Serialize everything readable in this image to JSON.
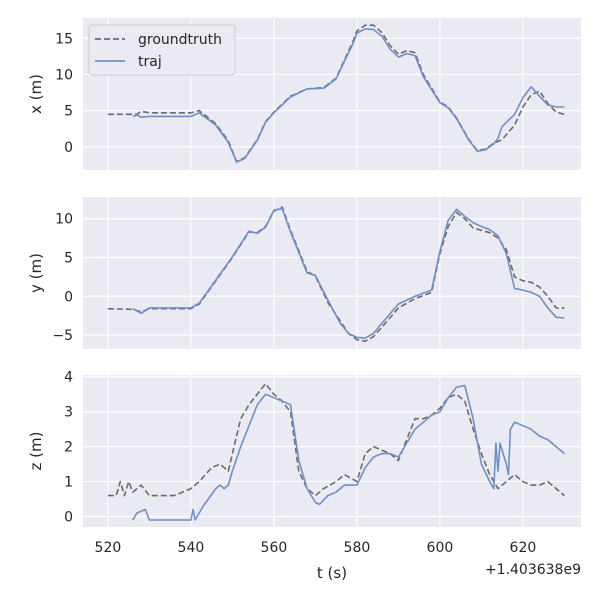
{
  "chart_data": {
    "type": "line",
    "xlabel": "t (s)",
    "x_offset_label": "+1.403638e9",
    "xlim": [
      514,
      634
    ],
    "x_ticks": [
      520,
      540,
      560,
      580,
      600,
      620
    ],
    "grid": true,
    "legend_location": "upper-left (top panel)",
    "style": {
      "background": "#eaeaf2",
      "grid_color": "#ffffff"
    },
    "series_styles": [
      {
        "name": "groundtruth",
        "color": "#6b6b6b",
        "dash": "dashed"
      },
      {
        "name": "traj",
        "color": "#6f8fc9",
        "dash": "solid"
      }
    ],
    "panels": [
      {
        "id": "x",
        "ylabel": "x (m)",
        "ylim": [
          -3.2,
          17.8
        ],
        "y_ticks": [
          0,
          5,
          10,
          15
        ],
        "series": [
          {
            "name": "groundtruth",
            "x": [
              520,
              527,
              528,
              530,
              533,
              540,
              542,
              546,
              549,
              551,
              553,
              556,
              558,
              560,
              564,
              568,
              572,
              575,
              577,
              579,
              580,
              582,
              584,
              586,
              588,
              590,
              592,
              594,
              596,
              600,
              602,
              604,
              607,
              609,
              611,
              613,
              615,
              618,
              620,
              622,
              624,
              626,
              628,
              630
            ],
            "y": [
              4.5,
              4.5,
              4.9,
              4.7,
              4.7,
              4.7,
              5.0,
              3.2,
              0.8,
              -2.0,
              -1.5,
              1.0,
              3.5,
              4.8,
              7.0,
              8.0,
              8.2,
              9.5,
              12.0,
              14.5,
              16.0,
              16.8,
              16.8,
              15.8,
              14.0,
              12.8,
              13.3,
              13.0,
              10.0,
              6.2,
              5.5,
              4.0,
              1.0,
              -0.5,
              -0.3,
              0.5,
              1.0,
              3.0,
              5.5,
              7.2,
              7.7,
              6.0,
              4.8,
              4.5
            ]
          },
          {
            "name": "traj",
            "x": [
              526,
              527,
              528,
              530,
              533,
              540,
              542,
              546,
              549,
              551,
              553,
              556,
              558,
              560,
              564,
              568,
              572,
              575,
              577,
              579,
              580,
              582,
              584,
              586,
              588,
              590,
              592,
              594,
              596,
              600,
              602,
              604,
              607,
              609,
              611,
              613,
              614,
              615,
              618,
              620,
              622,
              624,
              626,
              628,
              630
            ],
            "y": [
              4.2,
              4.4,
              4.1,
              4.2,
              4.2,
              4.2,
              4.7,
              3.0,
              0.6,
              -2.1,
              -1.6,
              0.9,
              3.4,
              4.7,
              6.9,
              8.0,
              8.1,
              9.4,
              11.8,
              14.2,
              15.7,
              16.3,
              16.2,
              15.3,
              13.5,
              12.4,
              12.9,
              12.6,
              9.7,
              6.1,
              5.4,
              3.9,
              0.9,
              -0.6,
              -0.4,
              0.4,
              1.2,
              2.8,
              4.5,
              6.8,
              8.3,
              7.0,
              5.8,
              5.5,
              5.5
            ]
          }
        ]
      },
      {
        "id": "y",
        "ylabel": "y (m)",
        "ylim": [
          -6.8,
          12.8
        ],
        "y_ticks": [
          -5,
          0,
          5,
          10
        ],
        "series": [
          {
            "name": "groundtruth",
            "x": [
              520,
              526,
              528,
              530,
              540,
              542,
              546,
              550,
              554,
              556,
              558,
              560,
              562,
              564,
              568,
              570,
              573,
              576,
              578,
              580,
              582,
              584,
              586,
              590,
              594,
              598,
              600,
              602,
              604,
              606,
              608,
              610,
              612,
              614,
              616,
              618,
              620,
              622,
              624,
              626,
              628,
              630
            ],
            "y": [
              -1.6,
              -1.7,
              -2.0,
              -1.6,
              -1.6,
              -1.0,
              2.0,
              5.0,
              8.3,
              8.2,
              9.0,
              11.0,
              11.5,
              8.5,
              3.2,
              2.6,
              -0.8,
              -3.2,
              -4.8,
              -5.6,
              -5.8,
              -5.2,
              -4.0,
              -1.5,
              -0.3,
              0.5,
              5.5,
              9.0,
              10.8,
              10.0,
              8.8,
              8.5,
              8.2,
              7.5,
              6.0,
              2.5,
              2.0,
              1.8,
              1.2,
              0.0,
              -1.5,
              -1.5
            ]
          },
          {
            "name": "traj",
            "x": [
              526,
              528,
              530,
              540,
              542,
              546,
              550,
              554,
              556,
              558,
              560,
              562,
              564,
              568,
              570,
              573,
              576,
              578,
              580,
              582,
              584,
              586,
              590,
              594,
              598,
              600,
              602,
              604,
              606,
              608,
              610,
              612,
              614,
              616,
              618,
              620,
              622,
              624,
              626,
              628,
              630
            ],
            "y": [
              -1.6,
              -2.2,
              -1.5,
              -1.5,
              -0.9,
              2.1,
              5.1,
              8.4,
              8.1,
              8.9,
              11.1,
              11.3,
              8.3,
              3.0,
              2.7,
              -0.5,
              -3.5,
              -4.8,
              -5.3,
              -5.4,
              -4.8,
              -3.5,
              -1.0,
              0.0,
              0.8,
              5.8,
              9.8,
              11.2,
              10.3,
              9.5,
              9.0,
              8.6,
              7.8,
              5.5,
              1.0,
              0.8,
              0.5,
              0.0,
              -1.5,
              -2.7,
              -2.8
            ]
          }
        ]
      },
      {
        "id": "z",
        "ylabel": "z (m)",
        "ylim": [
          -0.3,
          4.05
        ],
        "y_ticks": [
          0,
          1,
          2,
          3,
          4
        ],
        "series": [
          {
            "name": "groundtruth",
            "x": [
              520,
              522,
              523,
              524,
              525,
              526,
              527,
              528,
              530,
              533,
              536,
              540,
              542,
              545,
              547,
              549,
              550,
              552,
              554,
              556,
              558,
              560,
              562,
              564,
              566,
              568,
              570,
              572,
              575,
              577,
              580,
              582,
              584,
              586,
              588,
              590,
              592,
              594,
              596,
              598,
              600,
              602,
              604,
              606,
              608,
              610,
              612,
              614,
              616,
              618,
              620,
              622,
              624,
              626,
              628,
              630
            ],
            "y": [
              0.6,
              0.6,
              1.0,
              0.6,
              1.0,
              0.7,
              0.8,
              0.9,
              0.6,
              0.6,
              0.6,
              0.8,
              1.0,
              1.4,
              1.5,
              1.3,
              1.8,
              2.8,
              3.2,
              3.5,
              3.8,
              3.5,
              3.3,
              3.0,
              1.3,
              0.8,
              0.6,
              0.8,
              1.0,
              1.2,
              1.0,
              1.8,
              2.0,
              1.9,
              1.8,
              1.6,
              2.2,
              2.8,
              2.8,
              2.9,
              3.1,
              3.4,
              3.5,
              3.3,
              2.5,
              1.8,
              1.2,
              0.8,
              1.0,
              1.2,
              1.0,
              0.9,
              0.9,
              1.0,
              0.8,
              0.6
            ]
          },
          {
            "name": "traj",
            "x": [
              526,
              527,
              529,
              530,
              531,
              534,
              538,
              540,
              540.5,
              541,
              543,
              546,
              547,
              548,
              549,
              550,
              552,
              554,
              556,
              558,
              560,
              562,
              564,
              566,
              568,
              570,
              571,
              573,
              575,
              577,
              580,
              582,
              584,
              586,
              588,
              590,
              592,
              594,
              596,
              598,
              600,
              602,
              604,
              606,
              608,
              610,
              612,
              613,
              613.5,
              614,
              614.5,
              615,
              616,
              616.5,
              617,
              618,
              620,
              622,
              624,
              626,
              628,
              630
            ],
            "y": [
              -0.1,
              0.1,
              0.2,
              -0.1,
              -0.1,
              -0.1,
              -0.1,
              -0.1,
              0.2,
              -0.1,
              0.3,
              0.8,
              0.9,
              0.8,
              0.9,
              1.3,
              2.0,
              2.6,
              3.2,
              3.5,
              3.4,
              3.3,
              3.2,
              1.6,
              0.8,
              0.4,
              0.35,
              0.6,
              0.7,
              0.9,
              0.9,
              1.4,
              1.7,
              1.8,
              1.8,
              1.7,
              2.1,
              2.5,
              2.7,
              2.9,
              3.0,
              3.4,
              3.7,
              3.75,
              2.8,
              1.5,
              1.0,
              0.8,
              2.1,
              1.3,
              2.1,
              1.9,
              1.5,
              1.2,
              2.5,
              2.7,
              2.6,
              2.5,
              2.3,
              2.2,
              2.0,
              1.8
            ]
          }
        ]
      }
    ]
  }
}
